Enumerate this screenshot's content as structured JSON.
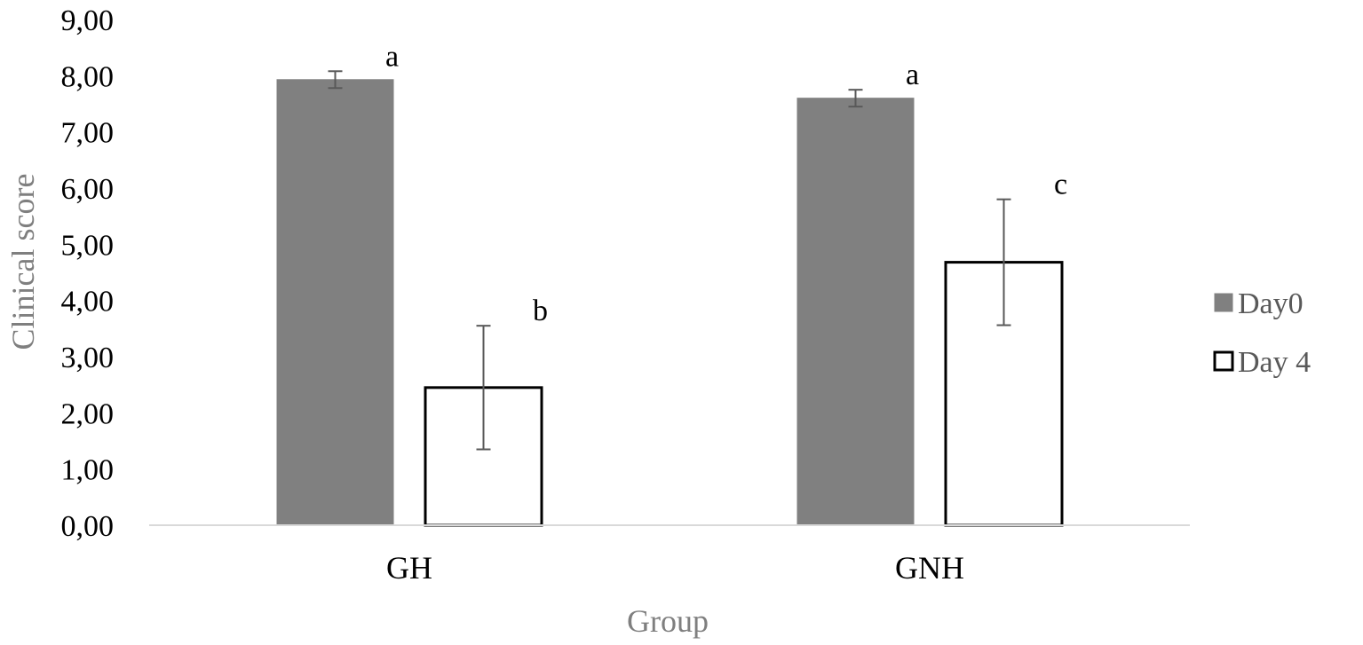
{
  "chart_data": {
    "type": "bar",
    "title": "",
    "xlabel": "Group",
    "ylabel": "Clinical score",
    "categories": [
      "GH",
      "GNH"
    ],
    "series": [
      {
        "name": "Day0",
        "values": [
          7.93,
          7.6
        ],
        "error": [
          0.15,
          0.15
        ],
        "letters": [
          "a",
          "a"
        ],
        "fill": "#808080",
        "stroke": "#808080"
      },
      {
        "name": "Day 4",
        "values": [
          2.45,
          4.68
        ],
        "error": [
          1.1,
          1.12
        ],
        "letters": [
          "b",
          "c"
        ],
        "fill": "#ffffff",
        "stroke": "#000000"
      }
    ],
    "ylim": [
      0,
      9
    ],
    "yticks": [
      "0,00",
      "1,00",
      "2,00",
      "3,00",
      "4,00",
      "5,00",
      "6,00",
      "7,00",
      "8,00",
      "9,00"
    ],
    "grid": false,
    "legend_position": "right"
  }
}
